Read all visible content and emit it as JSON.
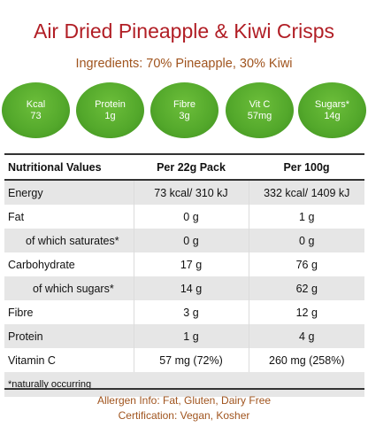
{
  "title": "Air Dried Pineapple & Kiwi Crisps",
  "ingredients": "Ingredients: 70% Pineapple, 30% Kiwi",
  "badges": [
    {
      "label": "Kcal",
      "value": "73"
    },
    {
      "label": "Protein",
      "value": "1g"
    },
    {
      "label": "Fibre",
      "value": "3g"
    },
    {
      "label": "Vit C",
      "value": "57mg"
    },
    {
      "label": "Sugars*",
      "value": "14g"
    }
  ],
  "table": {
    "headers": [
      "Nutritional Values",
      "Per 22g Pack",
      "Per 100g"
    ],
    "rows": [
      {
        "name": "Energy",
        "pack": "73 kcal/ 310 kJ",
        "per100": "332 kcal/ 1409 kJ"
      },
      {
        "name": "Fat",
        "pack": "0 g",
        "per100": "1 g"
      },
      {
        "name": "of which saturates*",
        "pack": "0 g",
        "per100": "0 g"
      },
      {
        "name": "Carbohydrate",
        "pack": "17 g",
        "per100": "76 g"
      },
      {
        "name": "of which sugars*",
        "pack": "14 g",
        "per100": "62 g"
      },
      {
        "name": "Fibre",
        "pack": "3 g",
        "per100": "12 g"
      },
      {
        "name": "Protein",
        "pack": "1 g",
        "per100": "4 g"
      },
      {
        "name": "Vitamin C",
        "pack": "57 mg (72%)",
        "per100": "260 mg (258%)"
      }
    ],
    "footnote": "*naturally occurring"
  },
  "allergen": "Allergen Info: Fat, Gluten, Dairy Free",
  "certification": "Certification: Vegan, Kosher",
  "colors": {
    "title": "#b11e25",
    "accent_text": "#a0541e",
    "badge_green": "#53a82b",
    "row_shade": "#e6e6e6"
  }
}
